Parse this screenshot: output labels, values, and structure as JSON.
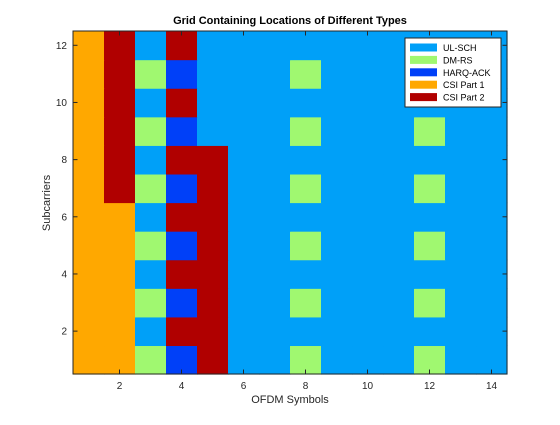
{
  "chart_data": {
    "type": "heatmap",
    "title": "Grid Containing Locations of Different Types",
    "xlabel": "OFDM Symbols",
    "ylabel": "Subcarriers",
    "xlim": [
      0.5,
      14.5
    ],
    "ylim": [
      0.5,
      12.5
    ],
    "x_ticks": [
      2,
      4,
      6,
      8,
      10,
      12,
      14
    ],
    "y_ticks": [
      2,
      4,
      6,
      8,
      10,
      12
    ],
    "legend_position": "top-right",
    "legend": [
      {
        "code": 1,
        "label": "UL-SCH",
        "color": "#00a0f8"
      },
      {
        "code": 2,
        "label": "DM-RS",
        "color": "#a0f870"
      },
      {
        "code": 3,
        "label": "HARQ-ACK",
        "color": "#0040f8"
      },
      {
        "code": 4,
        "label": "CSI Part 1",
        "color": "#ffa800"
      },
      {
        "code": 5,
        "label": "CSI Part 2",
        "color": "#b00000"
      }
    ],
    "columns": [
      1,
      2,
      3,
      4,
      5,
      6,
      7,
      8,
      9,
      10,
      11,
      12,
      13,
      14
    ],
    "rows": [
      1,
      2,
      3,
      4,
      5,
      6,
      7,
      8,
      9,
      10,
      11,
      12
    ],
    "grid": [
      [
        4,
        4,
        2,
        3,
        5,
        1,
        1,
        2,
        1,
        1,
        1,
        2,
        1,
        1
      ],
      [
        4,
        4,
        1,
        5,
        5,
        1,
        1,
        1,
        1,
        1,
        1,
        1,
        1,
        1
      ],
      [
        4,
        4,
        2,
        3,
        5,
        1,
        1,
        2,
        1,
        1,
        1,
        2,
        1,
        1
      ],
      [
        4,
        4,
        1,
        5,
        5,
        1,
        1,
        1,
        1,
        1,
        1,
        1,
        1,
        1
      ],
      [
        4,
        4,
        2,
        3,
        5,
        1,
        1,
        2,
        1,
        1,
        1,
        2,
        1,
        1
      ],
      [
        4,
        4,
        1,
        5,
        5,
        1,
        1,
        1,
        1,
        1,
        1,
        1,
        1,
        1
      ],
      [
        4,
        5,
        2,
        3,
        5,
        1,
        1,
        2,
        1,
        1,
        1,
        2,
        1,
        1
      ],
      [
        4,
        5,
        1,
        5,
        5,
        1,
        1,
        1,
        1,
        1,
        1,
        1,
        1,
        1
      ],
      [
        4,
        5,
        2,
        3,
        1,
        1,
        1,
        2,
        1,
        1,
        1,
        2,
        1,
        1
      ],
      [
        4,
        5,
        1,
        5,
        1,
        1,
        1,
        1,
        1,
        1,
        1,
        1,
        1,
        1
      ],
      [
        4,
        5,
        2,
        3,
        1,
        1,
        1,
        2,
        1,
        1,
        1,
        1,
        1,
        1
      ],
      [
        4,
        5,
        1,
        5,
        1,
        1,
        1,
        1,
        1,
        1,
        1,
        1,
        1,
        1
      ]
    ]
  }
}
